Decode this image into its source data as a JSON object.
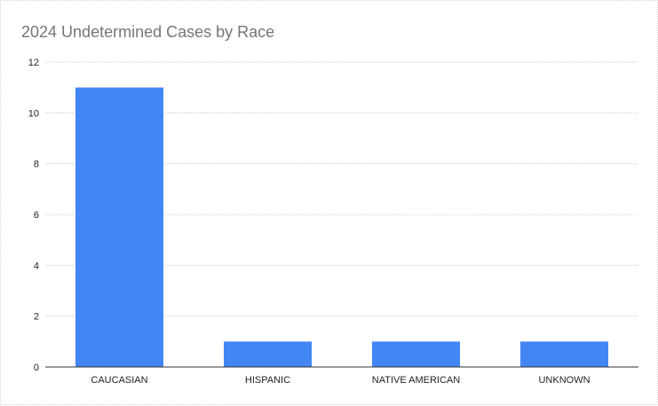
{
  "chart_data": {
    "type": "bar",
    "title": "2024 Undetermined Cases by Race",
    "categories": [
      "CAUCASIAN",
      "HISPANIC",
      "NATIVE AMERICAN",
      "UNKNOWN"
    ],
    "values": [
      11,
      1,
      1,
      1
    ],
    "ylim": [
      0,
      12
    ],
    "yticks": [
      0,
      2,
      4,
      6,
      8,
      10,
      12
    ],
    "grid": true,
    "legend": "none",
    "colors": {
      "bar": "#4285f4",
      "grid": "#cccccc",
      "axis": "#333333"
    }
  }
}
